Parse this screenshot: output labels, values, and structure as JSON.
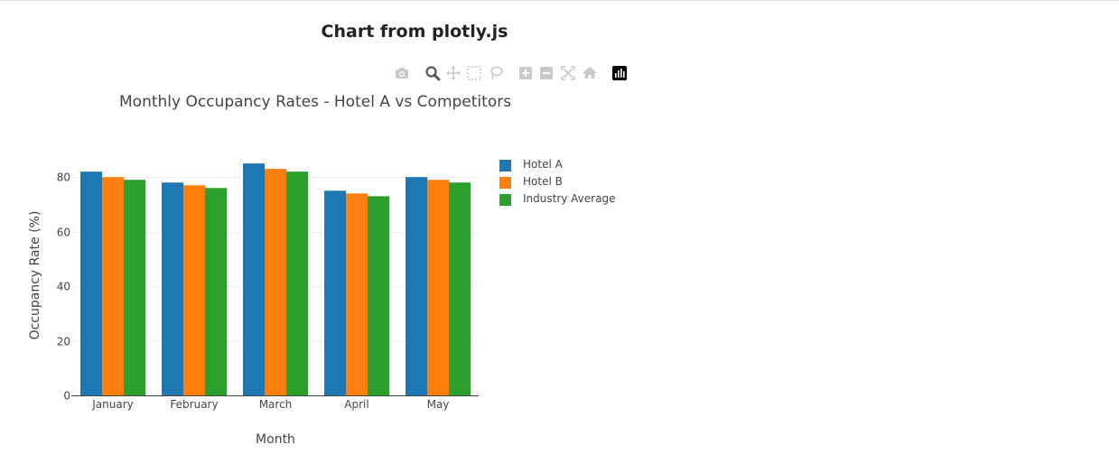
{
  "page": {
    "heading": "Chart from plotly.js"
  },
  "modebar": {
    "buttons": [
      {
        "name": "camera-icon",
        "title": "Download plot as a png"
      },
      {
        "name": "zoom-icon",
        "title": "Zoom"
      },
      {
        "name": "pan-icon",
        "title": "Pan"
      },
      {
        "name": "box-select-icon",
        "title": "Box Select"
      },
      {
        "name": "lasso-select-icon",
        "title": "Lasso Select"
      },
      {
        "name": "zoom-in-icon",
        "title": "Zoom in"
      },
      {
        "name": "zoom-out-icon",
        "title": "Zoom out"
      },
      {
        "name": "autoscale-icon",
        "title": "Autoscale"
      },
      {
        "name": "reset-axes-icon",
        "title": "Reset axes"
      },
      {
        "name": "plotly-logo-icon",
        "title": "Produced with Plotly"
      }
    ]
  },
  "chart_data": {
    "type": "bar",
    "title": "Monthly Occupancy Rates - Hotel A vs Competitors",
    "xlabel": "Month",
    "ylabel": "Occupancy Rate (%)",
    "categories": [
      "January",
      "February",
      "March",
      "April",
      "May"
    ],
    "series": [
      {
        "name": "Hotel A",
        "color": "#1f77b4",
        "values": [
          82,
          78,
          85,
          75,
          80
        ]
      },
      {
        "name": "Hotel B",
        "color": "#ff7f0e",
        "values": [
          80,
          77,
          83,
          74,
          79
        ]
      },
      {
        "name": "Industry Average",
        "color": "#2ca02c",
        "values": [
          79,
          76,
          82,
          73,
          78
        ]
      }
    ],
    "ylim": [
      0,
      88
    ],
    "yticks": [
      0,
      20,
      40,
      60,
      80
    ],
    "grid": true,
    "legend_position": "right"
  }
}
